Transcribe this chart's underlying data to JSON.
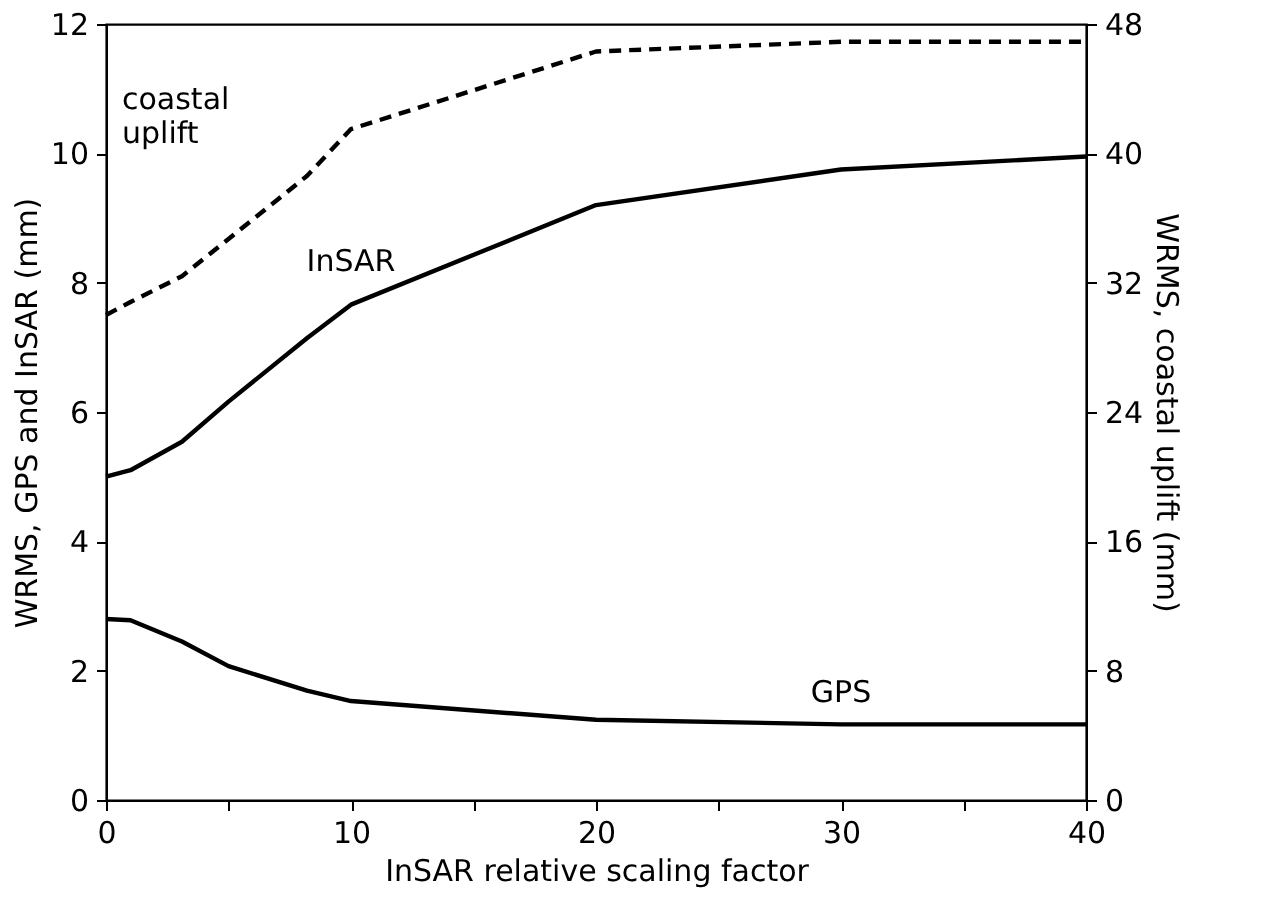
{
  "chart_data": {
    "type": "line",
    "xlabel": "InSAR relative scaling factor",
    "ylabel": "WRMS, GPS and InSAR  (mm)",
    "y2label": "WRMS, coastal uplift  (mm)",
    "x": [
      0,
      1,
      3.1,
      5,
      8.2,
      10,
      20,
      30,
      40
    ],
    "series": [
      {
        "name": "InSAR",
        "color": "#000000",
        "line_style": "solid",
        "values": [
          5.0,
          5.1,
          5.54,
          6.16,
          7.14,
          7.66,
          9.2,
          9.75,
          9.95
        ]
      },
      {
        "name": "GPS",
        "color": "#000000",
        "line_style": "solid",
        "values": [
          2.8,
          2.78,
          2.45,
          2.07,
          1.69,
          1.53,
          1.24,
          1.17,
          1.17
        ]
      },
      {
        "name": "coastal uplift",
        "color": "#000000",
        "line_style": "dashed",
        "axis": "y2",
        "values": [
          30,
          30.8,
          32.4,
          34.7,
          38.6,
          41.5,
          46.3,
          46.9,
          46.9
        ]
      }
    ],
    "xlim": [
      0,
      40
    ],
    "xticks": [
      0,
      {
        "value": 5,
        "label": null
      },
      10,
      {
        "value": 15,
        "label": null
      },
      20,
      {
        "value": 25,
        "label": null
      },
      30,
      {
        "value": 35,
        "label": null
      },
      40
    ],
    "ylim": [
      0,
      12
    ],
    "yticks": [
      0,
      2,
      4,
      6,
      8,
      10,
      12
    ],
    "y2lim": [
      0,
      48
    ],
    "y2ticks": [
      0,
      8,
      16,
      24,
      32,
      40,
      48
    ],
    "grid": false,
    "marker": "none"
  }
}
